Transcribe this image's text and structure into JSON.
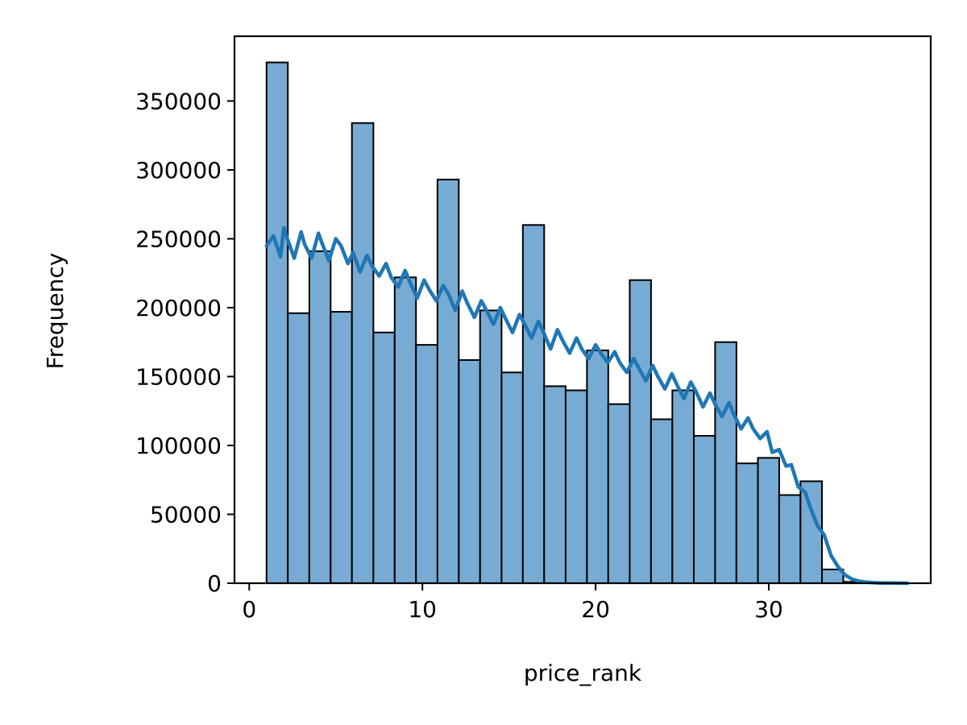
{
  "chart_data": {
    "type": "bar",
    "subtype": "histogram-with-kde",
    "title": "",
    "xlabel": "price_rank",
    "ylabel": "Frequency",
    "xlim": [
      -0.85,
      39.35
    ],
    "ylim": [
      0,
      397000
    ],
    "xticks": [
      0,
      10,
      20,
      30
    ],
    "yticks": [
      0,
      50000,
      100000,
      150000,
      200000,
      250000,
      300000,
      350000
    ],
    "grid": false,
    "legend": "none",
    "bar_color": "#77abd3",
    "line_color": "#1f77b4",
    "bins": [
      {
        "x0": 1.0,
        "x1": 2.23,
        "value": 378000
      },
      {
        "x0": 2.23,
        "x1": 3.47,
        "value": 196000
      },
      {
        "x0": 3.47,
        "x1": 4.7,
        "value": 241000
      },
      {
        "x0": 4.7,
        "x1": 5.93,
        "value": 197000
      },
      {
        "x0": 5.93,
        "x1": 7.17,
        "value": 334000
      },
      {
        "x0": 7.17,
        "x1": 8.4,
        "value": 182000
      },
      {
        "x0": 8.4,
        "x1": 9.63,
        "value": 222000
      },
      {
        "x0": 9.63,
        "x1": 10.87,
        "value": 173000
      },
      {
        "x0": 10.87,
        "x1": 12.1,
        "value": 293000
      },
      {
        "x0": 12.1,
        "x1": 13.33,
        "value": 162000
      },
      {
        "x0": 13.33,
        "x1": 14.57,
        "value": 198000
      },
      {
        "x0": 14.57,
        "x1": 15.8,
        "value": 153000
      },
      {
        "x0": 15.8,
        "x1": 17.03,
        "value": 260000
      },
      {
        "x0": 17.03,
        "x1": 18.27,
        "value": 143000
      },
      {
        "x0": 18.27,
        "x1": 19.5,
        "value": 140000
      },
      {
        "x0": 19.5,
        "x1": 20.73,
        "value": 169000
      },
      {
        "x0": 20.73,
        "x1": 21.97,
        "value": 130000
      },
      {
        "x0": 21.97,
        "x1": 23.2,
        "value": 220000
      },
      {
        "x0": 23.2,
        "x1": 24.43,
        "value": 119000
      },
      {
        "x0": 24.43,
        "x1": 25.67,
        "value": 140000
      },
      {
        "x0": 25.67,
        "x1": 26.9,
        "value": 107000
      },
      {
        "x0": 26.9,
        "x1": 28.13,
        "value": 175000
      },
      {
        "x0": 28.13,
        "x1": 29.37,
        "value": 87000
      },
      {
        "x0": 29.37,
        "x1": 30.6,
        "value": 91000
      },
      {
        "x0": 30.6,
        "x1": 31.83,
        "value": 64000
      },
      {
        "x0": 31.83,
        "x1": 33.07,
        "value": 74000
      },
      {
        "x0": 33.07,
        "x1": 34.3,
        "value": 10000
      },
      {
        "x0": 34.3,
        "x1": 35.53,
        "value": 1000
      }
    ],
    "kde": {
      "x": [
        1.0,
        1.4,
        1.8,
        2.0,
        2.2,
        2.6,
        3.0,
        3.2,
        3.6,
        4.0,
        4.2,
        4.6,
        5.0,
        5.3,
        5.7,
        6.0,
        6.4,
        6.8,
        7.1,
        7.5,
        7.9,
        8.2,
        8.6,
        9.0,
        9.3,
        9.7,
        10.1,
        10.4,
        10.8,
        11.2,
        11.5,
        11.9,
        12.3,
        12.6,
        13.0,
        13.4,
        13.7,
        14.1,
        14.5,
        14.8,
        15.2,
        15.6,
        15.9,
        16.3,
        16.7,
        17.0,
        17.4,
        17.8,
        18.1,
        18.5,
        18.9,
        19.2,
        19.6,
        20.0,
        20.3,
        20.7,
        21.1,
        21.4,
        21.8,
        22.2,
        22.5,
        22.9,
        23.3,
        23.6,
        24.0,
        24.4,
        24.7,
        25.1,
        25.5,
        25.8,
        26.2,
        26.6,
        26.9,
        27.3,
        27.7,
        28.0,
        28.4,
        28.8,
        29.1,
        29.5,
        29.9,
        30.2,
        30.6,
        31.0,
        31.3,
        31.7,
        32.1,
        32.4,
        32.8,
        33.2,
        33.6,
        34.0,
        34.4,
        34.8,
        35.2,
        35.6,
        36.0,
        36.5,
        37.0,
        37.5,
        38.0
      ],
      "y": [
        245000,
        252000,
        237000,
        258000,
        250000,
        236000,
        255000,
        246000,
        236000,
        254000,
        247000,
        234000,
        250000,
        245000,
        232000,
        240000,
        226000,
        238000,
        230000,
        223000,
        232000,
        222000,
        215000,
        227000,
        218000,
        207000,
        220000,
        213000,
        205000,
        216000,
        210000,
        198000,
        212000,
        203000,
        193000,
        205000,
        198000,
        188000,
        200000,
        192000,
        182000,
        195000,
        188000,
        178000,
        190000,
        182000,
        170000,
        184000,
        176000,
        167000,
        178000,
        170000,
        163000,
        173000,
        167000,
        160000,
        168000,
        160000,
        153000,
        163000,
        156000,
        147000,
        158000,
        150000,
        141000,
        152000,
        144000,
        134000,
        146000,
        139000,
        128000,
        138000,
        130000,
        121000,
        131000,
        122000,
        112000,
        120000,
        112000,
        105000,
        110000,
        95000,
        97000,
        85000,
        86000,
        70000,
        66000,
        55000,
        42000,
        35000,
        20000,
        12000,
        6000,
        3000,
        1500,
        800,
        400,
        200,
        100,
        50,
        0
      ]
    }
  }
}
